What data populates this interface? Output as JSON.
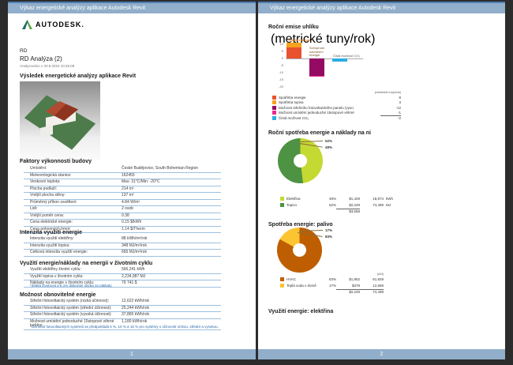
{
  "header": {
    "title": "Výkaz energetické analýzy aplikace Autodesk Revit"
  },
  "page1": {
    "page_number": "1",
    "logo_text": "AUTODESK.",
    "project": "RD",
    "analysis_name": "RD Analýza (2)",
    "analyzed_at": "Analyzováno v 20.8.2015 10:45:09",
    "result_section_title": "Výsledek energetické analýzy aplikace Revit",
    "factors": {
      "title": "Faktory výkonnosti budovy",
      "rows": [
        {
          "label": "Umístění:",
          "value": "České Budějovice, South Bohemian Region"
        },
        {
          "label": "Meteorologická stanice:",
          "value": "162455"
        },
        {
          "label": "Venkovní teplota:",
          "value": "Max: 31°C/Min: -20°C"
        },
        {
          "label": "Plocha podlaží:",
          "value": "214 m²"
        },
        {
          "label": "Vnější plocha stěny:",
          "value": "137 m²"
        },
        {
          "label": "Průměrný příkon osvětlení:",
          "value": "4.84 W/m²"
        },
        {
          "label": "Lidí:",
          "value": "2 osob"
        },
        {
          "label": "Vnější poměr cena:",
          "value": "0.38"
        },
        {
          "label": "Cena elektrické energie:",
          "value": "0.15 $/kWh"
        },
        {
          "label": "Cena pohonných hmot:",
          "value": "1.14 $/Therm"
        }
      ]
    },
    "intensity": {
      "title": "Intenzita využití energie",
      "rows": [
        {
          "label": "Intenzita využití elektřiny:",
          "value": "88 kWh/m²/rok"
        },
        {
          "label": "Intenzita využití topiva:",
          "value": "348 MJ/m²/rok"
        },
        {
          "label": "Celková intenzita využití energie:",
          "value": "665 MJ/m²/rok"
        }
      ]
    },
    "lifecycle": {
      "title": "Využití energie/náklady na energii v životním cyklu",
      "rows": [
        {
          "label": "Využití elektřiny životní cyklu:",
          "value": "566,241 kWh"
        },
        {
          "label": "Využití topiva v životním cyklu:",
          "value": "2,234,987 MJ"
        },
        {
          "label": "Náklady na energie v životním cyklu:",
          "value": "79 741 $"
        }
      ],
      "footnote": "*30letá životnost a 6,1% diskontní sazba za náklady"
    },
    "renewable": {
      "title": "Možnost obnovitelné energie",
      "rows": [
        {
          "label": "Střešní fotovoltaický systém (nízká účinnost):",
          "value": "12,622 kWh/rok"
        },
        {
          "label": "Střešní fotovoltaický systém (střední účinnost):",
          "value": "25,244 kWh/rok"
        },
        {
          "label": "Střešní fotovoltaický systém (vysoká účinnost):",
          "value": "37,865 kWh/rok"
        },
        {
          "label": "Možnost umístění jednoduché 15stopové větrné turbíny:",
          "value": "1,180 kWh/rok"
        }
      ],
      "footnote": "*Účinnost fotovoltaických systémů se předpokládá 5 %, 10 % a 15 % pro systémy s účinností nízkou, střední a vysokou."
    }
  },
  "page2": {
    "page_number": "2",
    "electricity_title": "Využití energie: elektřina"
  },
  "chart_data": [
    {
      "type": "bar",
      "title": "Roční emise uhlíku",
      "ylabel": "(metrické tuny/rok)",
      "ylim": [
        -20,
        15
      ],
      "yticks": [
        15,
        10,
        5,
        0,
        -5,
        -10,
        -15,
        -20
      ],
      "grid": false,
      "bars": [
        {
          "label": "Využití energie",
          "segments": [
            {
              "name": "Spotřeba energie",
              "value": 8,
              "color": "#E8522E"
            },
            {
              "name": "Spotřeba topiva",
              "value": 3,
              "color": "#F5A21C"
            }
          ]
        },
        {
          "label": "Schopnost návrácení energie",
          "segments": [
            {
              "name": "Možnost střešního fotovoltaického panelu (vysoká)",
              "value": -12,
              "color": "#940B63"
            },
            {
              "name": "Možnost umístění jednoduché 15stopové větrné turbíny",
              "value": -1,
              "color": "#ED268F"
            }
          ]
        },
        {
          "label": "Čistá možnost CO₂",
          "segments": [
            {
              "name": "Čistá možnost CO₂",
              "value": -2,
              "color": "#2CADE4"
            }
          ]
        }
      ],
      "legend": {
        "position": "bottom",
        "value_header": "(metrické tuny/rok)",
        "items": [
          {
            "label": "Spotřeba energie",
            "value": "8",
            "color": "#E8522E"
          },
          {
            "label": "Spotřeba topiva",
            "value": "3",
            "color": "#F5A21C"
          },
          {
            "label": "Možnost střešního fotovoltaického panelu (vyso",
            "value": "-12",
            "color": "#940B63"
          },
          {
            "label": "Možnost umístění jednoduché 15stopové větrné",
            "value": "-1",
            "color": "#ED268F"
          },
          {
            "label": "Čistá možnost CO₂",
            "value": "-2",
            "color": "#2CADE4"
          }
        ]
      }
    },
    {
      "type": "pie",
      "donut": true,
      "title": "Roční spotřeba energie a náklady na ni",
      "callouts": [
        "52%",
        "48%"
      ],
      "slices": [
        {
          "label": "Elektřina",
          "pct": 48,
          "color": "#C5D933",
          "cost": "$1,429",
          "amount": "18,874",
          "unit": "kWh"
        },
        {
          "label": "Topivo",
          "pct": 52,
          "color": "#4E9243",
          "cost": "$2,229",
          "amount": "74,499",
          "unit": "MJ"
        }
      ],
      "total_cost": "$3,658"
    },
    {
      "type": "pie",
      "donut": true,
      "title": "Spotřeba energie: palivo",
      "callouts": [
        "17%",
        "83%"
      ],
      "amount_header": "(MJ)",
      "slices": [
        {
          "label": "HVAC",
          "pct": 83,
          "color": "#BE5E00",
          "cost": "$1,852",
          "amount": "61,829"
        },
        {
          "label": "Teplá voda v domě",
          "pct": 17,
          "color": "#FDC431",
          "cost": "$378",
          "amount": "12,669"
        }
      ],
      "totals": {
        "cost": "$2,229",
        "amount": "74,498"
      }
    }
  ]
}
